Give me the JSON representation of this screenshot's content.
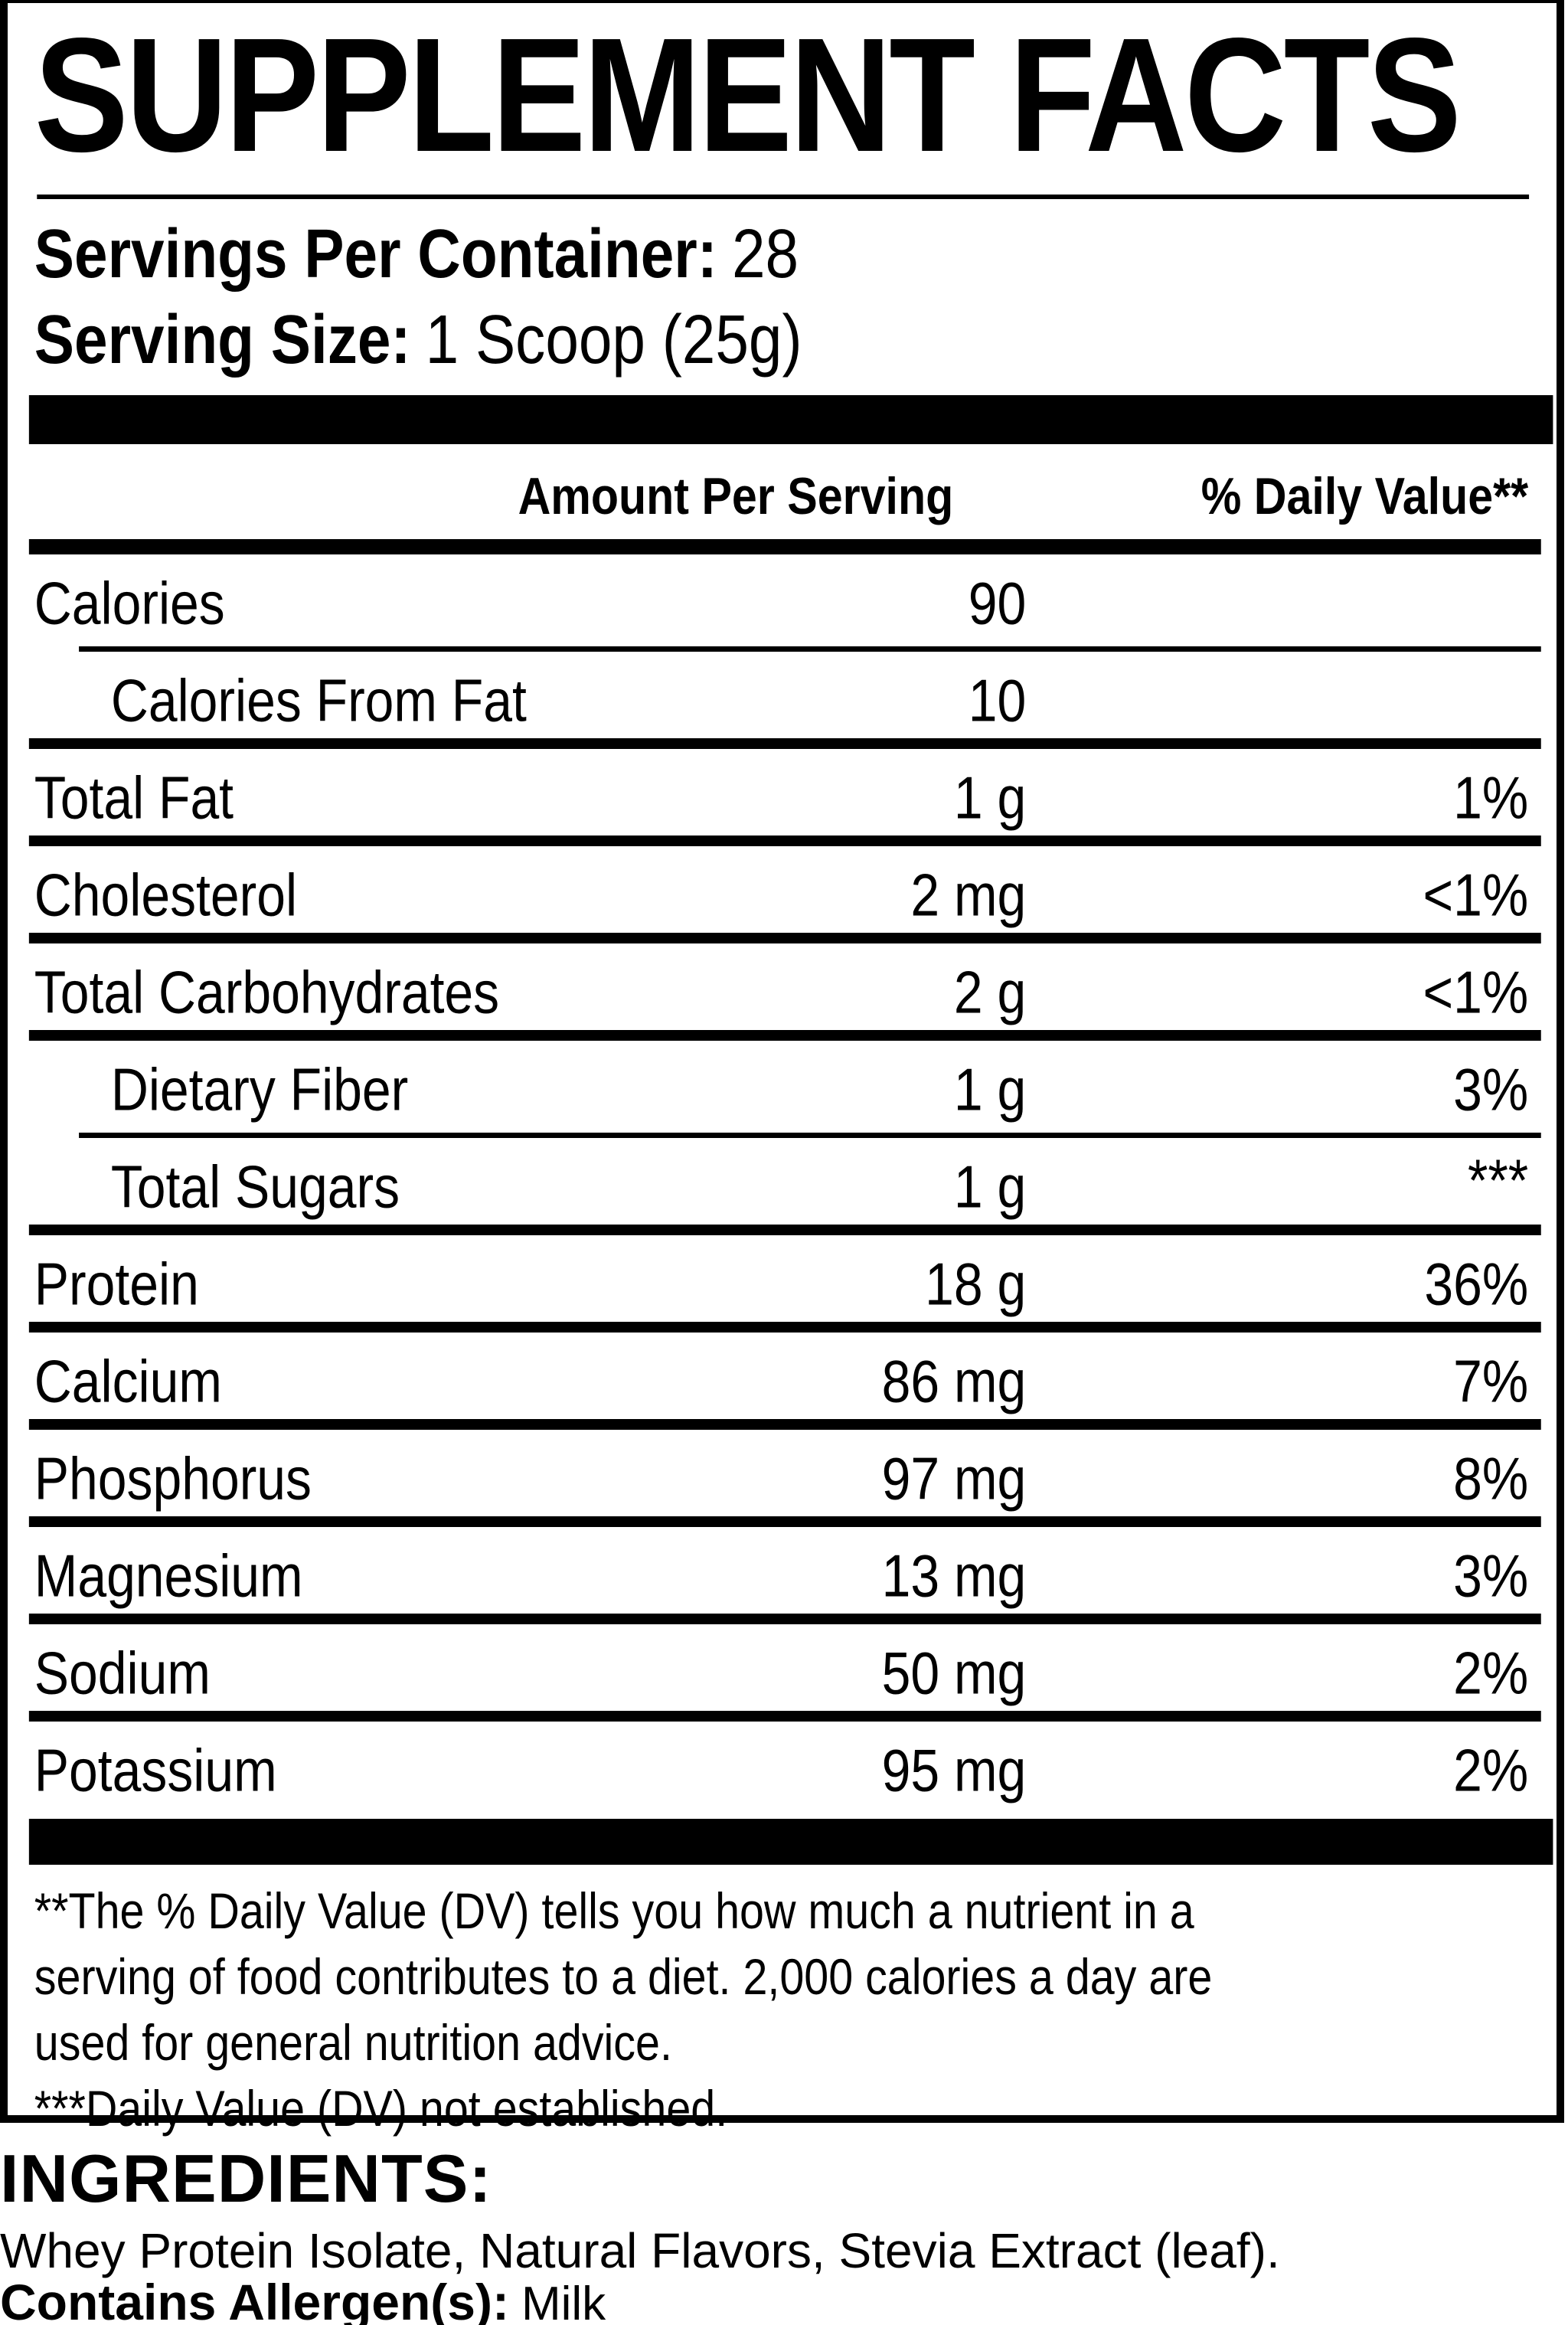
{
  "label": {
    "title": "SUPPLEMENT FACTS",
    "servings_per_container": {
      "label": "Servings Per Container:",
      "value": "28"
    },
    "serving_size": {
      "label": "Serving Size:",
      "value": "1 Scoop (25g)"
    },
    "columns": {
      "amount": "Amount Per Serving",
      "daily_value": "% Daily Value**"
    },
    "rows": [
      {
        "name": "Calories",
        "amount": "90",
        "dv": ""
      },
      {
        "name": "Calories From Fat",
        "amount": "10",
        "dv": ""
      },
      {
        "name": "Total Fat",
        "amount": "1 g",
        "dv": "1%"
      },
      {
        "name": "Cholesterol",
        "amount": "2 mg",
        "dv": "<1%"
      },
      {
        "name": "Total Carbohydrates",
        "amount": "2 g",
        "dv": "<1%"
      },
      {
        "name": "Dietary Fiber",
        "amount": "1 g",
        "dv": "3%"
      },
      {
        "name": "Total Sugars",
        "amount": "1 g",
        "dv": "***"
      },
      {
        "name": "Protein",
        "amount": "18 g",
        "dv": "36%"
      },
      {
        "name": "Calcium",
        "amount": "86 mg",
        "dv": "7%"
      },
      {
        "name": "Phosphorus",
        "amount": "97 mg",
        "dv": "8%"
      },
      {
        "name": "Magnesium",
        "amount": "13 mg",
        "dv": "3%"
      },
      {
        "name": "Sodium",
        "amount": "50 mg",
        "dv": "2%"
      },
      {
        "name": "Potassium",
        "amount": "95 mg",
        "dv": "2%"
      }
    ],
    "footnote": "**The % Daily Value (DV) tells you how much a nutrient in a\nserving of food contributes to a diet. 2,000 calories a day are\nused for general nutrition advice.\n***Daily Value (DV) not established.",
    "colors": {
      "ink": "#000000",
      "paper": "#ffffff"
    }
  },
  "ingredients": {
    "heading": "INGREDIENTS:",
    "list": "Whey Protein Isolate, Natural Flavors, Stevia Extract (leaf).",
    "allergen_label": "Contains Allergen(s):",
    "allergen_value": "Milk"
  }
}
